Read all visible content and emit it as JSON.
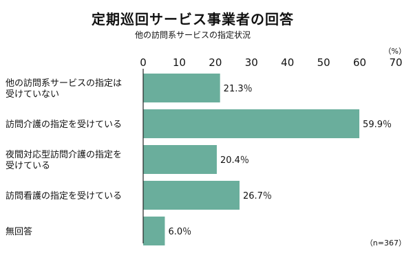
{
  "chart_data": {
    "type": "bar",
    "orientation": "horizontal",
    "title": "定期巡回サービス事業者の回答",
    "subtitle": "他の訪問系サービスの指定状況",
    "unit": "（%）",
    "note": "（n=367）",
    "xlim": [
      0,
      70
    ],
    "ticks": [
      0,
      10,
      20,
      30,
      40,
      50,
      60,
      70
    ],
    "grid": false,
    "bar_color": "#6aae9c",
    "categories": [
      [
        "他の訪問系サービスの指定は",
        "受けていない"
      ],
      [
        "訪問介護の指定を受けている"
      ],
      [
        "夜間対応型訪問介護の指定を",
        "受けている"
      ],
      [
        "訪問看護の指定を受けている"
      ],
      [
        "無回答"
      ]
    ],
    "values": [
      21.3,
      59.9,
      20.4,
      26.7,
      6.0
    ],
    "value_labels": [
      "21.3％",
      "59.9％",
      "20.4％",
      "26.7％",
      "6.0％"
    ]
  }
}
